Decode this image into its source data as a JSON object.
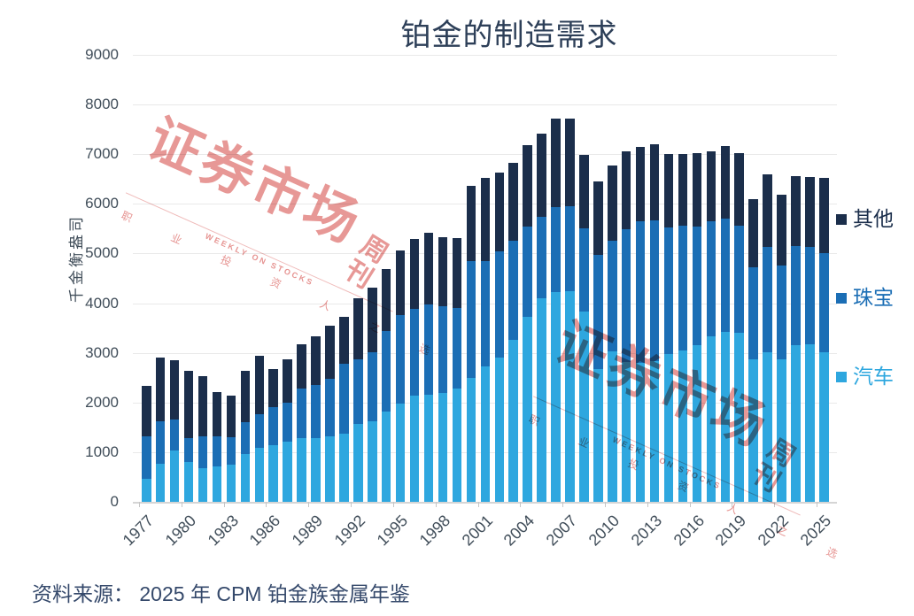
{
  "title": "铂金的制造需求",
  "source": "资料来源： 2025 年 CPM 铂金族金属年鉴",
  "y_axis": {
    "label": "千金衡盎司",
    "ticks": [
      0,
      1000,
      2000,
      3000,
      4000,
      5000,
      6000,
      7000,
      8000,
      9000
    ]
  },
  "legend": [
    {
      "label": "其他",
      "color": "#1b2e4b"
    },
    {
      "label": "珠宝",
      "color": "#1b6eb5"
    },
    {
      "label": "汽车",
      "color": "#2ea7df"
    }
  ],
  "watermark": {
    "main": "证券市场",
    "suffix": "周刊",
    "tagline_en": "WEEKLY ON STOCKS",
    "tagline_cn": "职 业 投 资 人 之 选"
  },
  "chart_data": {
    "type": "bar",
    "stacked": true,
    "title": "铂金的制造需求",
    "ylabel": "千金衡盎司",
    "ylim": [
      0,
      9000
    ],
    "grid": true,
    "legend_position": "right",
    "x": [
      1977,
      1978,
      1979,
      1980,
      1981,
      1982,
      1983,
      1984,
      1985,
      1986,
      1987,
      1988,
      1989,
      1990,
      1991,
      1992,
      1993,
      1994,
      1995,
      1996,
      1997,
      1998,
      1999,
      2000,
      2001,
      2002,
      2003,
      2004,
      2005,
      2006,
      2007,
      2008,
      2009,
      2010,
      2011,
      2012,
      2013,
      2014,
      2015,
      2016,
      2017,
      2018,
      2019,
      2020,
      2021,
      2022,
      2023,
      2024,
      2025
    ],
    "x_tick_labels": [
      "1977",
      "1980",
      "1983",
      "1986",
      "1989",
      "1992",
      "1995",
      "1998",
      "2001",
      "2004",
      "2007",
      "2010",
      "2013",
      "2016",
      "2019",
      "2022",
      "2025"
    ],
    "series": [
      {
        "name": "汽车",
        "color": "#2ea7df",
        "values": [
          460,
          775,
          1040,
          805,
          685,
          715,
          745,
          955,
          1085,
          1145,
          1205,
          1275,
          1280,
          1325,
          1380,
          1575,
          1615,
          1815,
          1980,
          2130,
          2150,
          2190,
          2280,
          2495,
          2730,
          2900,
          3255,
          3730,
          4105,
          4215,
          4240,
          3840,
          2680,
          3030,
          2820,
          2800,
          2840,
          2975,
          3050,
          3150,
          3325,
          3415,
          3405,
          2870,
          3020,
          2870,
          3150,
          3165,
          3020
        ]
      },
      {
        "name": "珠宝",
        "color": "#1b6eb5",
        "values": [
          850,
          845,
          615,
          475,
          635,
          595,
          550,
          655,
          685,
          770,
          785,
          1015,
          1065,
          1160,
          1400,
          1290,
          1400,
          1625,
          1775,
          1755,
          1825,
          1755,
          1620,
          2350,
          2110,
          2150,
          2000,
          1805,
          1635,
          1720,
          1715,
          1665,
          2290,
          2225,
          2665,
          2855,
          2830,
          2545,
          2510,
          2400,
          2325,
          2280,
          2155,
          1845,
          2110,
          1890,
          1995,
          1965,
          1995
        ]
      },
      {
        "name": "其他",
        "color": "#1b2e4b",
        "values": [
          1020,
          1285,
          1200,
          1350,
          1210,
          905,
          850,
          1020,
          1170,
          765,
          880,
          885,
          985,
          1070,
          950,
          1240,
          1305,
          1240,
          1310,
          1410,
          1450,
          1380,
          1415,
          1515,
          1675,
          1575,
          1570,
          1650,
          1680,
          1785,
          1755,
          1475,
          1475,
          1520,
          1565,
          1490,
          1530,
          1485,
          1445,
          1475,
          1415,
          1470,
          1465,
          1385,
          1460,
          1425,
          1415,
          1410,
          1515
        ]
      }
    ]
  }
}
